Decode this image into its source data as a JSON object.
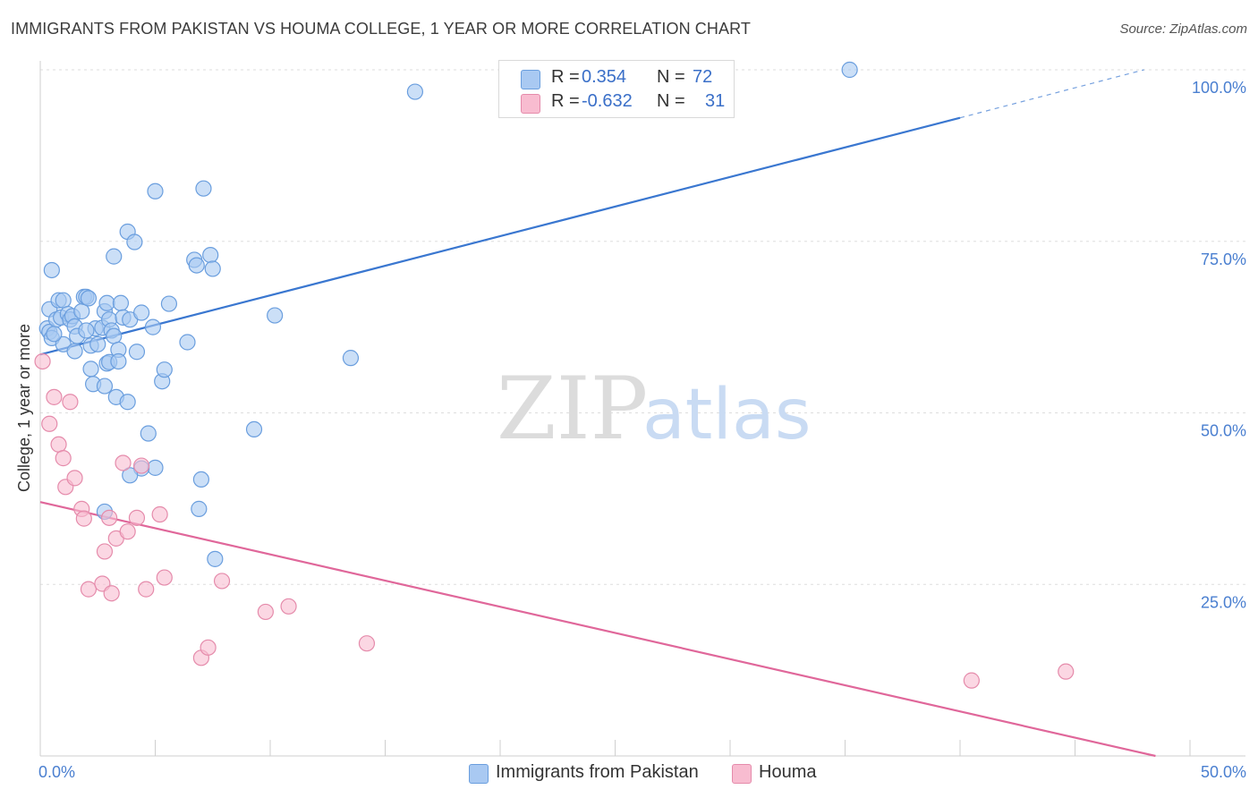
{
  "title": "IMMIGRANTS FROM PAKISTAN VS HOUMA COLLEGE, 1 YEAR OR MORE CORRELATION CHART",
  "source": "Source: ZipAtlas.com",
  "watermark": {
    "zip": "ZIP",
    "atlas": "atlas"
  },
  "legend": {
    "rows": [
      {
        "r_label": "R =",
        "r_value": "0.354",
        "n_label": "N =",
        "n_value": "72",
        "color": "#a9c9f2",
        "border": "#6a9ede"
      },
      {
        "r_label": "R =",
        "r_value": "-0.632",
        "n_label": "N =",
        "n_value": "31",
        "color": "#f8bcd0",
        "border": "#e58bab"
      }
    ]
  },
  "bottom_legend": {
    "pakistan": "Immigrants from Pakistan",
    "houma": "Houma"
  },
  "chart_data": {
    "type": "scatter",
    "title": "IMMIGRANTS FROM PAKISTAN VS HOUMA COLLEGE, 1 YEAR OR MORE CORRELATION CHART",
    "xlabel": "",
    "ylabel": "College, 1 year or more",
    "xlim": [
      0,
      50
    ],
    "ylim": [
      0,
      100
    ],
    "x_tick_labels": [
      "0.0%",
      "50.0%"
    ],
    "y_ticks": [
      25,
      50,
      75,
      100
    ],
    "y_tick_labels": [
      "25.0%",
      "50.0%",
      "75.0%",
      "100.0%"
    ],
    "series": [
      {
        "name": "Immigrants from Pakistan",
        "color": "#6a9ede",
        "fill": "#a9c9f2",
        "line_color": "#3a77d0",
        "trend": {
          "x0": 0,
          "y0": 58.5,
          "x1": 40,
          "y1": 93,
          "dash_to_x": 48,
          "dash_to_y": 100
        },
        "points": [
          [
            0.3,
            62.3
          ],
          [
            0.4,
            61.8
          ],
          [
            0.5,
            60.9
          ],
          [
            0.4,
            65.1
          ],
          [
            0.7,
            63.6
          ],
          [
            0.9,
            63.9
          ],
          [
            0.8,
            66.4
          ],
          [
            1.0,
            66.4
          ],
          [
            1.2,
            64.4
          ],
          [
            1.3,
            63.6
          ],
          [
            1.4,
            64.1
          ],
          [
            1.5,
            62.6
          ],
          [
            1.6,
            61.2
          ],
          [
            1.8,
            64.8
          ],
          [
            1.9,
            66.9
          ],
          [
            2.0,
            66.9
          ],
          [
            2.1,
            66.7
          ],
          [
            2.2,
            59.8
          ],
          [
            2.4,
            62.3
          ],
          [
            2.5,
            60.0
          ],
          [
            2.7,
            62.4
          ],
          [
            2.8,
            64.8
          ],
          [
            2.9,
            66.0
          ],
          [
            3.0,
            63.6
          ],
          [
            3.1,
            62.0
          ],
          [
            3.2,
            61.2
          ],
          [
            3.4,
            59.2
          ],
          [
            3.5,
            66.0
          ],
          [
            3.6,
            63.9
          ],
          [
            3.9,
            63.6
          ],
          [
            4.4,
            64.6
          ],
          [
            4.9,
            62.5
          ],
          [
            5.6,
            65.9
          ],
          [
            6.4,
            60.3
          ],
          [
            0.5,
            70.8
          ],
          [
            3.2,
            72.8
          ],
          [
            3.8,
            76.4
          ],
          [
            4.1,
            74.9
          ],
          [
            5.0,
            82.3
          ],
          [
            6.7,
            72.3
          ],
          [
            6.8,
            71.5
          ],
          [
            7.1,
            82.7
          ],
          [
            7.4,
            73.0
          ],
          [
            7.5,
            71.0
          ],
          [
            10.2,
            64.2
          ],
          [
            13.5,
            58.0
          ],
          [
            16.3,
            96.8
          ],
          [
            35.2,
            100.0
          ],
          [
            2.2,
            56.4
          ],
          [
            2.3,
            54.2
          ],
          [
            2.8,
            53.9
          ],
          [
            2.9,
            57.2
          ],
          [
            3.0,
            57.4
          ],
          [
            3.3,
            52.3
          ],
          [
            3.4,
            57.5
          ],
          [
            3.8,
            51.6
          ],
          [
            4.2,
            58.9
          ],
          [
            5.0,
            42.0
          ],
          [
            4.7,
            47.0
          ],
          [
            5.3,
            54.6
          ],
          [
            5.4,
            56.3
          ],
          [
            7.0,
            40.3
          ],
          [
            6.9,
            36.0
          ],
          [
            7.6,
            28.7
          ],
          [
            9.3,
            47.6
          ],
          [
            4.4,
            41.9
          ],
          [
            2.8,
            35.6
          ],
          [
            3.9,
            40.9
          ],
          [
            1.0,
            60.0
          ],
          [
            1.5,
            59.0
          ],
          [
            2.0,
            62.0
          ],
          [
            0.6,
            61.5
          ]
        ]
      },
      {
        "name": "Houma",
        "color": "#e58bab",
        "fill": "#f8bcd0",
        "line_color": "#e0679a",
        "trend": {
          "x0": 0,
          "y0": 37,
          "x1": 48.5,
          "y1": 0
        },
        "points": [
          [
            0.1,
            57.5
          ],
          [
            0.4,
            48.4
          ],
          [
            0.6,
            52.3
          ],
          [
            0.8,
            45.4
          ],
          [
            1.0,
            43.4
          ],
          [
            1.1,
            39.2
          ],
          [
            1.3,
            51.6
          ],
          [
            1.5,
            40.5
          ],
          [
            1.8,
            36.0
          ],
          [
            1.9,
            34.6
          ],
          [
            2.1,
            24.3
          ],
          [
            2.7,
            25.1
          ],
          [
            2.8,
            29.8
          ],
          [
            3.0,
            34.7
          ],
          [
            3.1,
            23.7
          ],
          [
            3.3,
            31.7
          ],
          [
            3.6,
            42.7
          ],
          [
            3.8,
            32.7
          ],
          [
            4.2,
            34.7
          ],
          [
            4.4,
            42.3
          ],
          [
            4.6,
            24.3
          ],
          [
            5.2,
            35.2
          ],
          [
            5.4,
            26.0
          ],
          [
            7.0,
            14.3
          ],
          [
            7.3,
            15.8
          ],
          [
            7.9,
            25.5
          ],
          [
            9.8,
            21.0
          ],
          [
            10.8,
            21.8
          ],
          [
            14.2,
            16.4
          ],
          [
            40.5,
            11.0
          ],
          [
            44.6,
            12.3
          ]
        ]
      }
    ]
  }
}
